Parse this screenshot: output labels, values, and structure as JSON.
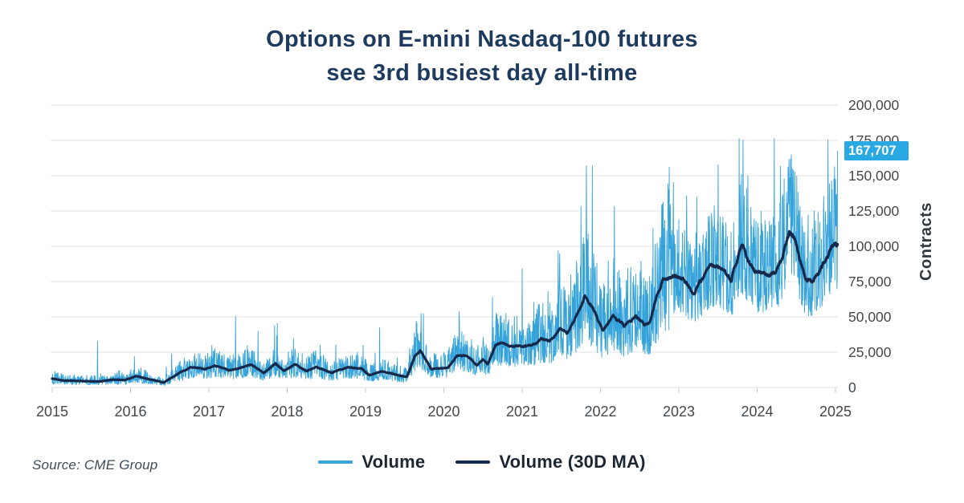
{
  "title": {
    "line1": "Options on E-mini Nasdaq-100 futures",
    "line2": "see 3rd busiest day all-time"
  },
  "source": "Source: CME Group",
  "colors": {
    "volume_blue": "#35a3d9",
    "ma_navy": "#16294a",
    "badge_blue": "#29a9e1",
    "badge_text": "#ffffff",
    "title_navy": "#1e3a5e",
    "grid": "#e3e3e3",
    "tick_mark": "#c8c8c8",
    "tick_text": "#43484d",
    "legend_text": "#1d2733",
    "source_text": "#3e4a56"
  },
  "chart_data": {
    "type": "line",
    "title": "Options on E-mini Nasdaq-100 futures see 3rd busiest day all-time",
    "xlabel": "",
    "ylabel": "Contracts",
    "xlim": [
      2015,
      2025.03
    ],
    "ylim": [
      0,
      200000
    ],
    "grid": "horizontal",
    "legend_position": "bottom",
    "x_ticks": [
      2015,
      2016,
      2017,
      2018,
      2019,
      2020,
      2021,
      2022,
      2023,
      2024,
      2025
    ],
    "y_ticks": [
      {
        "value": 200000,
        "label": "200,000"
      },
      {
        "value": 175000,
        "label": "175,000"
      },
      {
        "value": 150000,
        "label": "150,000"
      },
      {
        "value": 125000,
        "label": "125,000"
      },
      {
        "value": 100000,
        "label": "100,000"
      },
      {
        "value": 75000,
        "label": "75,000"
      },
      {
        "value": 50000,
        "label": "50,000"
      },
      {
        "value": 25000,
        "label": "25,000"
      },
      {
        "value": 0,
        "label": "0"
      }
    ],
    "annotation": {
      "label": "167,707",
      "value": 167707,
      "desc": "final daily volume (3rd busiest day all-time), highlighted on y-axis"
    },
    "noise_bands": [
      [
        2015.0,
        2016.6,
        0.4,
        1.95,
        0.05,
        2.2
      ],
      [
        2016.6,
        2019.5,
        0.45,
        1.85,
        0.05,
        1.9
      ],
      [
        2019.5,
        2021.6,
        0.5,
        1.85,
        0.05,
        1.8
      ],
      [
        2021.6,
        2022.9,
        0.5,
        1.8,
        0.05,
        1.7
      ],
      [
        2022.9,
        2025.1,
        0.66,
        1.52,
        0.06,
        1.35
      ]
    ],
    "series": [
      {
        "name": "Volume",
        "kind": "daily volume, noisy band around 30D MA",
        "color_key": "volume_blue",
        "spikes": [
          [
            2015.58,
            33000
          ],
          [
            2016.05,
            22000
          ],
          [
            2017.34,
            50500
          ],
          [
            2017.63,
            40000
          ],
          [
            2017.84,
            44000
          ],
          [
            2018.08,
            35000
          ],
          [
            2018.62,
            30500
          ],
          [
            2019.18,
            42500
          ],
          [
            2019.74,
            52500
          ],
          [
            2020.2,
            45000
          ],
          [
            2020.62,
            64000
          ],
          [
            2021.46,
            97000
          ],
          [
            2021.62,
            80000
          ],
          [
            2021.75,
            128500
          ],
          [
            2021.83,
            105000
          ],
          [
            2022.1,
            90000
          ],
          [
            2022.35,
            84500
          ],
          [
            2022.67,
            113000
          ],
          [
            2022.79,
            130000
          ],
          [
            2022.9,
            108000
          ],
          [
            2023.1,
            136000
          ],
          [
            2023.23,
            135000
          ],
          [
            2023.5,
            158000
          ],
          [
            2023.77,
            176500
          ],
          [
            2023.88,
            150000
          ],
          [
            2024.05,
            125000
          ],
          [
            2024.22,
            176500
          ],
          [
            2024.3,
            157000
          ],
          [
            2024.65,
            122500
          ],
          [
            2024.85,
            135500
          ],
          [
            2024.95,
            146500
          ],
          [
            2025.03,
            167707
          ]
        ]
      },
      {
        "name": "Volume (30D MA)",
        "color_key": "ma_navy",
        "anchors": [
          [
            2015.0,
            6300
          ],
          [
            2015.15,
            5000
          ],
          [
            2015.4,
            4600
          ],
          [
            2015.62,
            4200
          ],
          [
            2015.78,
            5700
          ],
          [
            2015.92,
            5200
          ],
          [
            2016.08,
            8000
          ],
          [
            2016.25,
            5600
          ],
          [
            2016.42,
            3500
          ],
          [
            2016.6,
            9500
          ],
          [
            2016.76,
            14200
          ],
          [
            2016.95,
            13000
          ],
          [
            2017.07,
            15800
          ],
          [
            2017.25,
            12200
          ],
          [
            2017.4,
            13500
          ],
          [
            2017.54,
            16500
          ],
          [
            2017.7,
            10400
          ],
          [
            2017.85,
            17000
          ],
          [
            2017.96,
            11500
          ],
          [
            2018.1,
            16000
          ],
          [
            2018.25,
            11500
          ],
          [
            2018.37,
            14800
          ],
          [
            2018.57,
            10300
          ],
          [
            2018.78,
            14200
          ],
          [
            2018.95,
            13500
          ],
          [
            2019.05,
            8600
          ],
          [
            2019.2,
            11200
          ],
          [
            2019.35,
            9600
          ],
          [
            2019.53,
            7500
          ],
          [
            2019.63,
            22000
          ],
          [
            2019.7,
            26000
          ],
          [
            2019.84,
            13200
          ],
          [
            2019.95,
            13500
          ],
          [
            2020.05,
            14200
          ],
          [
            2020.17,
            23000
          ],
          [
            2020.3,
            22000
          ],
          [
            2020.42,
            15500
          ],
          [
            2020.5,
            19500
          ],
          [
            2020.56,
            16500
          ],
          [
            2020.66,
            30000
          ],
          [
            2020.75,
            31000
          ],
          [
            2020.88,
            28500
          ],
          [
            2021.0,
            29000
          ],
          [
            2021.12,
            29500
          ],
          [
            2021.25,
            34500
          ],
          [
            2021.35,
            33000
          ],
          [
            2021.48,
            41500
          ],
          [
            2021.58,
            37500
          ],
          [
            2021.68,
            48000
          ],
          [
            2021.8,
            66000
          ],
          [
            2021.88,
            59000
          ],
          [
            2022.03,
            40500
          ],
          [
            2022.16,
            52000
          ],
          [
            2022.3,
            43500
          ],
          [
            2022.45,
            51500
          ],
          [
            2022.56,
            44000
          ],
          [
            2022.64,
            47500
          ],
          [
            2022.73,
            67000
          ],
          [
            2022.8,
            77500
          ],
          [
            2022.9,
            79500
          ],
          [
            2023.0,
            79500
          ],
          [
            2023.1,
            74000
          ],
          [
            2023.2,
            66000
          ],
          [
            2023.33,
            80000
          ],
          [
            2023.42,
            85500
          ],
          [
            2023.55,
            84000
          ],
          [
            2023.67,
            74500
          ],
          [
            2023.8,
            102000
          ],
          [
            2023.9,
            89000
          ],
          [
            2023.97,
            81000
          ],
          [
            2024.1,
            79500
          ],
          [
            2024.23,
            80500
          ],
          [
            2024.33,
            95000
          ],
          [
            2024.41,
            111000
          ],
          [
            2024.47,
            108000
          ],
          [
            2024.55,
            90000
          ],
          [
            2024.61,
            78500
          ],
          [
            2024.7,
            74500
          ],
          [
            2024.79,
            84000
          ],
          [
            2024.9,
            93000
          ],
          [
            2025.0,
            104000
          ],
          [
            2025.03,
            104500
          ]
        ]
      }
    ]
  }
}
